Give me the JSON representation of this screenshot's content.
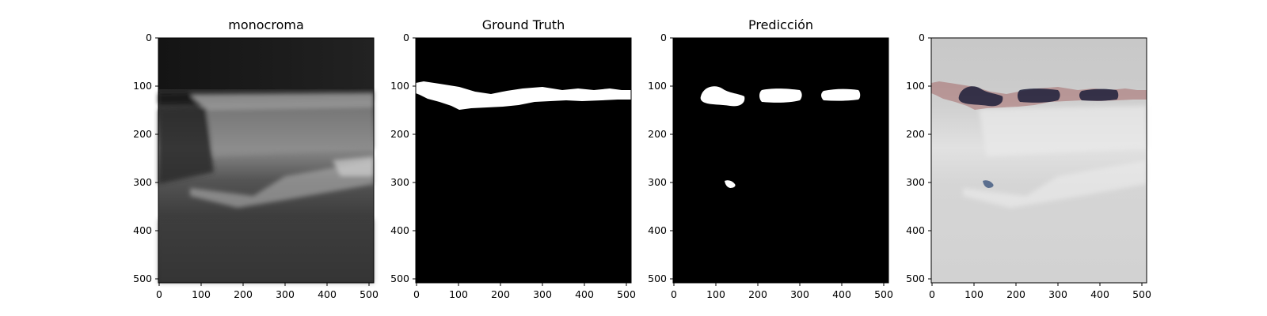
{
  "figure": {
    "panels": [
      {
        "title": "monocroma",
        "kind": "grayscale-ultrasound",
        "x_ticks": [
          "0",
          "100",
          "200",
          "300",
          "400",
          "500"
        ],
        "y_ticks": [
          "0",
          "100",
          "200",
          "300",
          "400",
          "500"
        ]
      },
      {
        "title": "Ground Truth",
        "kind": "binary-mask-ground-truth",
        "x_ticks": [
          "0",
          "100",
          "200",
          "300",
          "400",
          "500"
        ],
        "y_ticks": [
          "0",
          "100",
          "200",
          "300",
          "400",
          "500"
        ]
      },
      {
        "title": "Predicción",
        "kind": "binary-mask-prediction",
        "x_ticks": [
          "0",
          "100",
          "200",
          "300",
          "400",
          "500"
        ],
        "y_ticks": [
          "0",
          "100",
          "200",
          "300",
          "400",
          "500"
        ]
      },
      {
        "title": "",
        "kind": "overlay",
        "x_ticks": [
          "0",
          "100",
          "200",
          "300",
          "400",
          "500"
        ],
        "y_ticks": [
          "0",
          "100",
          "200",
          "300",
          "400",
          "500"
        ]
      }
    ],
    "colors": {
      "mask_foreground": "#ffffff",
      "mask_background": "#000000",
      "overlay_ground_truth": "#a56a6a",
      "overlay_prediction": "#1d1f3a",
      "overlay_prediction_small": "#4e6487",
      "axis": "#000000"
    }
  }
}
